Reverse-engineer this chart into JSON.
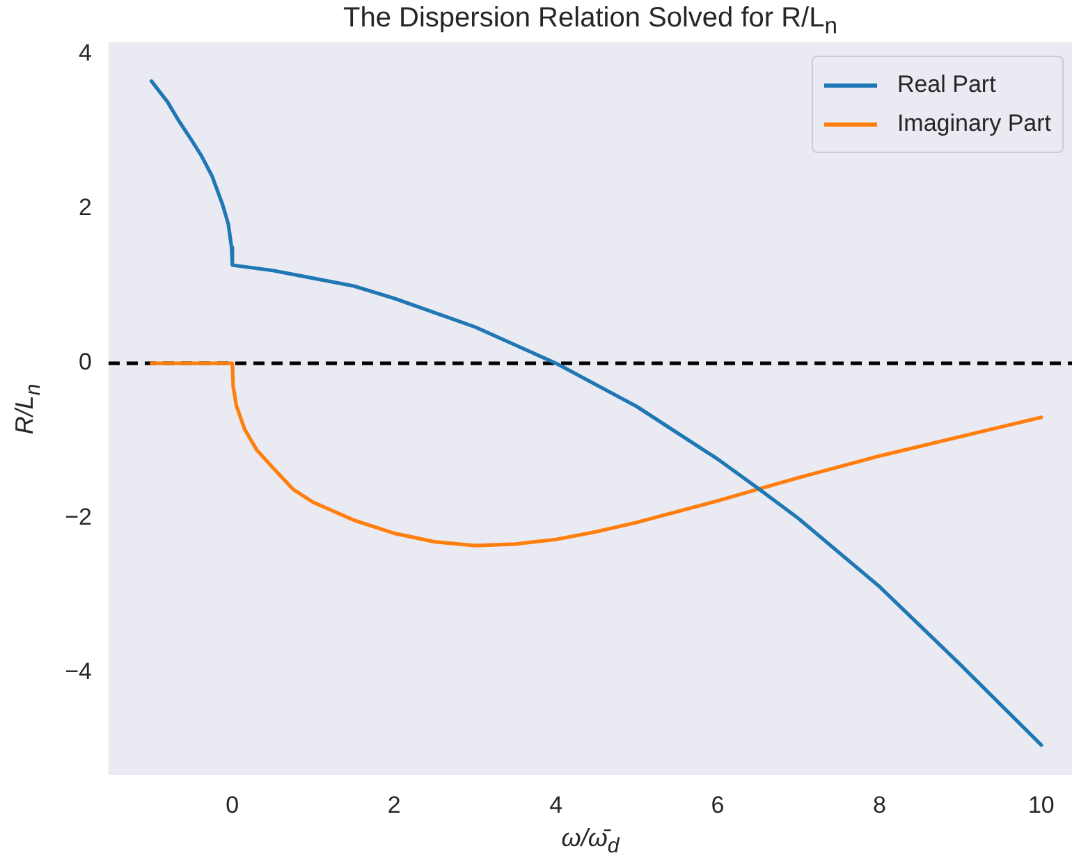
{
  "chart_data": {
    "type": "line",
    "title": "The Dispersion Relation Solved for R/L$_{n}$",
    "xlabel": "ω/ω̄$_{d}$",
    "ylabel": "R/L$_{n}$",
    "series": [
      {
        "name": "Real Part",
        "color": "#1f77b4",
        "x": [
          -1,
          -0.8,
          -0.67,
          -0.5,
          -0.38,
          -0.25,
          -0.12,
          -0.05,
          -0.01,
          0,
          0.5,
          1,
          1.5,
          2,
          3,
          4,
          5,
          6,
          6.5,
          7,
          8,
          9,
          10
        ],
        "values": [
          3.65,
          3.38,
          3.15,
          2.88,
          2.68,
          2.42,
          2.05,
          1.8,
          1.5,
          1.27,
          1.2,
          1.1,
          1.0,
          0.84,
          0.47,
          0.0,
          -0.56,
          -1.24,
          -1.62,
          -2.01,
          -2.89,
          -3.9,
          -4.94
        ]
      },
      {
        "name": "Imaginary Part",
        "color": "#ff7f0e",
        "x": [
          -1,
          0,
          0.01,
          0.05,
          0.15,
          0.3,
          0.5,
          0.75,
          1,
          1.5,
          2,
          2.5,
          3,
          3.5,
          4,
          4.5,
          5,
          6,
          6.5,
          7,
          8,
          9,
          10
        ],
        "values": [
          0,
          0,
          -0.3,
          -0.55,
          -0.85,
          -1.12,
          -1.35,
          -1.63,
          -1.8,
          -2.03,
          -2.2,
          -2.31,
          -2.36,
          -2.34,
          -2.28,
          -2.18,
          -2.06,
          -1.78,
          -1.63,
          -1.48,
          -1.2,
          -0.95,
          -0.7
        ]
      }
    ],
    "xlim": [
      -1.53,
      10.38
    ],
    "ylim": [
      -5.33,
      4.16
    ],
    "xticks": [
      0,
      2,
      4,
      6,
      8,
      10
    ],
    "yticks": [
      {
        "value": -4,
        "label": "−4"
      },
      {
        "value": -2,
        "label": "−2"
      },
      0,
      2,
      4
    ],
    "ref_lines": [
      {
        "axis": "y",
        "value": 0,
        "color": "#000000",
        "line_style": "dashed"
      }
    ],
    "grid": false,
    "legend": "top right",
    "marker": "none",
    "line_style": "solid"
  }
}
